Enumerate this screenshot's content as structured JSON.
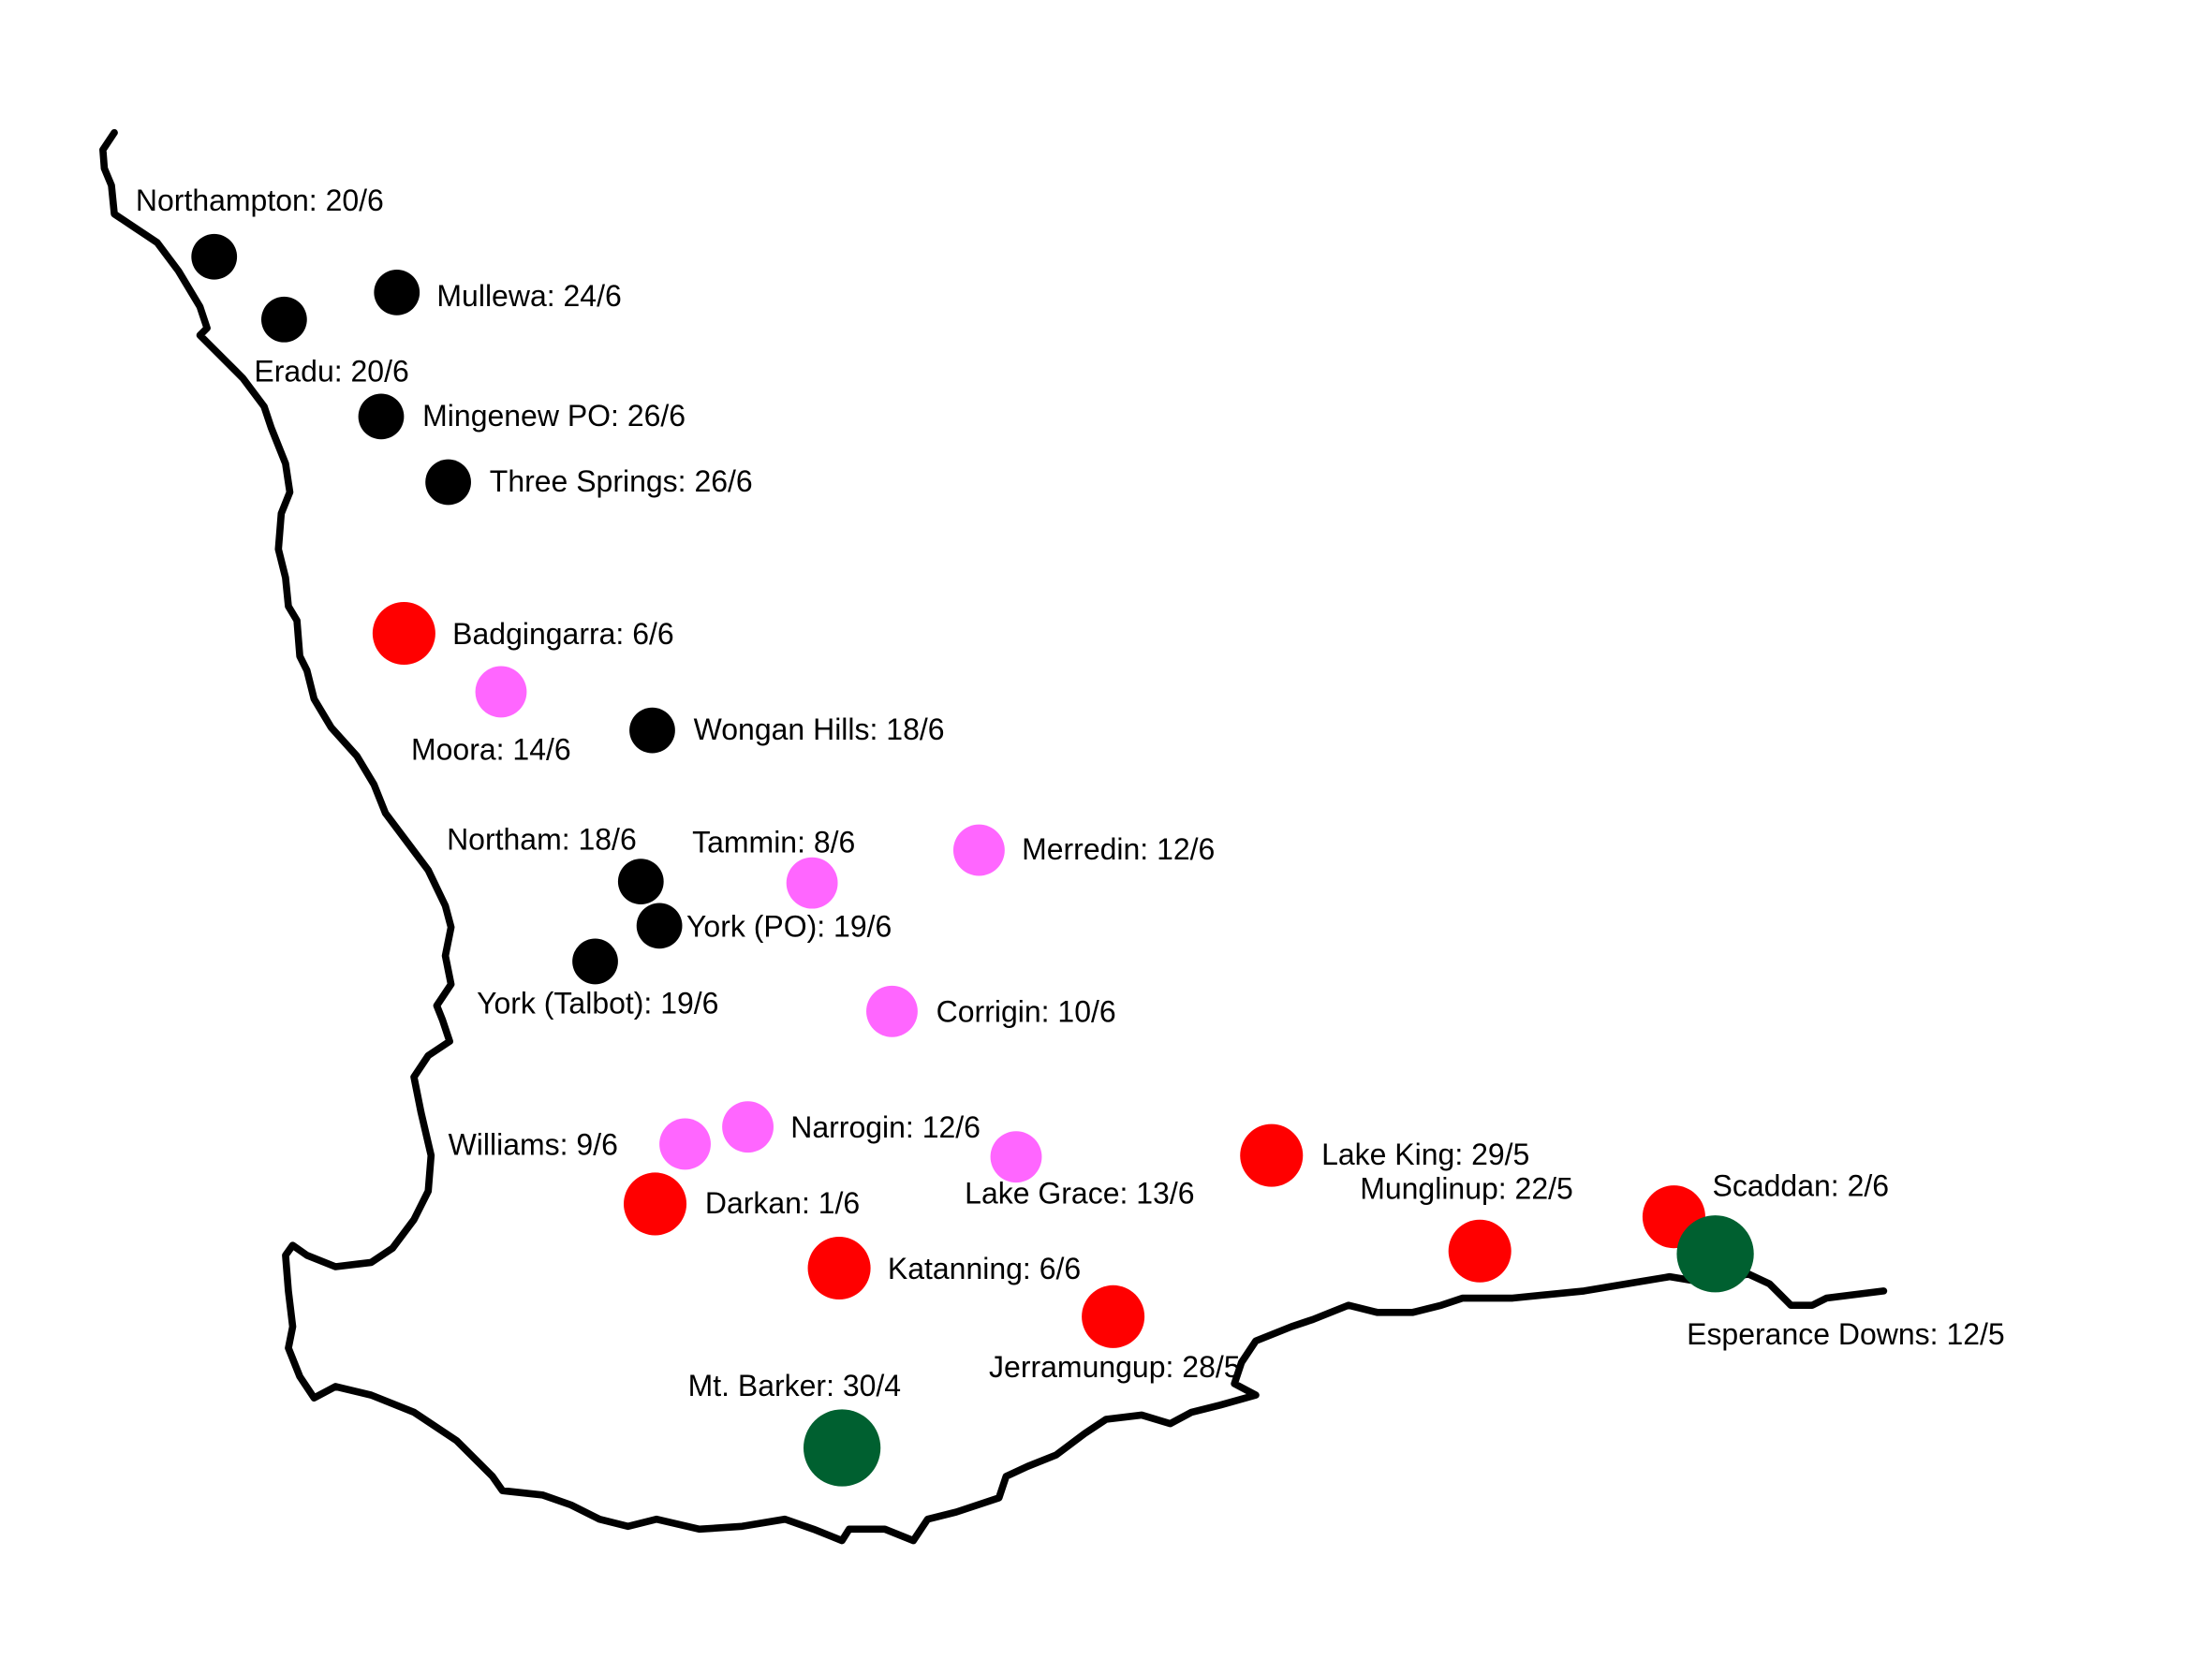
{
  "places": [
    {
      "label": "Northampton: 20/6"
    },
    {
      "label": "Mullewa: 24/6"
    },
    {
      "label": "Eradu: 20/6"
    },
    {
      "label": "Mingenew PO: 26/6"
    },
    {
      "label": "Three Springs: 26/6"
    },
    {
      "label": "Badgingarra: 6/6"
    },
    {
      "label": "Moora: 14/6"
    },
    {
      "label": "Wongan Hills: 18/6"
    },
    {
      "label": "Northam: 18/6"
    },
    {
      "label": "Tammin: 8/6"
    },
    {
      "label": "Merredin: 12/6"
    },
    {
      "label": "York (PO): 19/6"
    },
    {
      "label": "York (Talbot): 19/6"
    },
    {
      "label": "Corrigin: 10/6"
    },
    {
      "label": "Williams: 9/6"
    },
    {
      "label": "Narrogin: 12/6"
    },
    {
      "label": "Lake Grace: 13/6"
    },
    {
      "label": "Lake King: 29/5"
    },
    {
      "label": "Munglinup: 22/5"
    },
    {
      "label": "Scaddan: 2/6"
    },
    {
      "label": "Esperance Downs: 12/5"
    },
    {
      "label": "Darkan: 1/6"
    },
    {
      "label": "Katanning: 6/6"
    },
    {
      "label": "Jerramungup: 28/5"
    },
    {
      "label": "Mt. Barker: 30/4"
    }
  ]
}
